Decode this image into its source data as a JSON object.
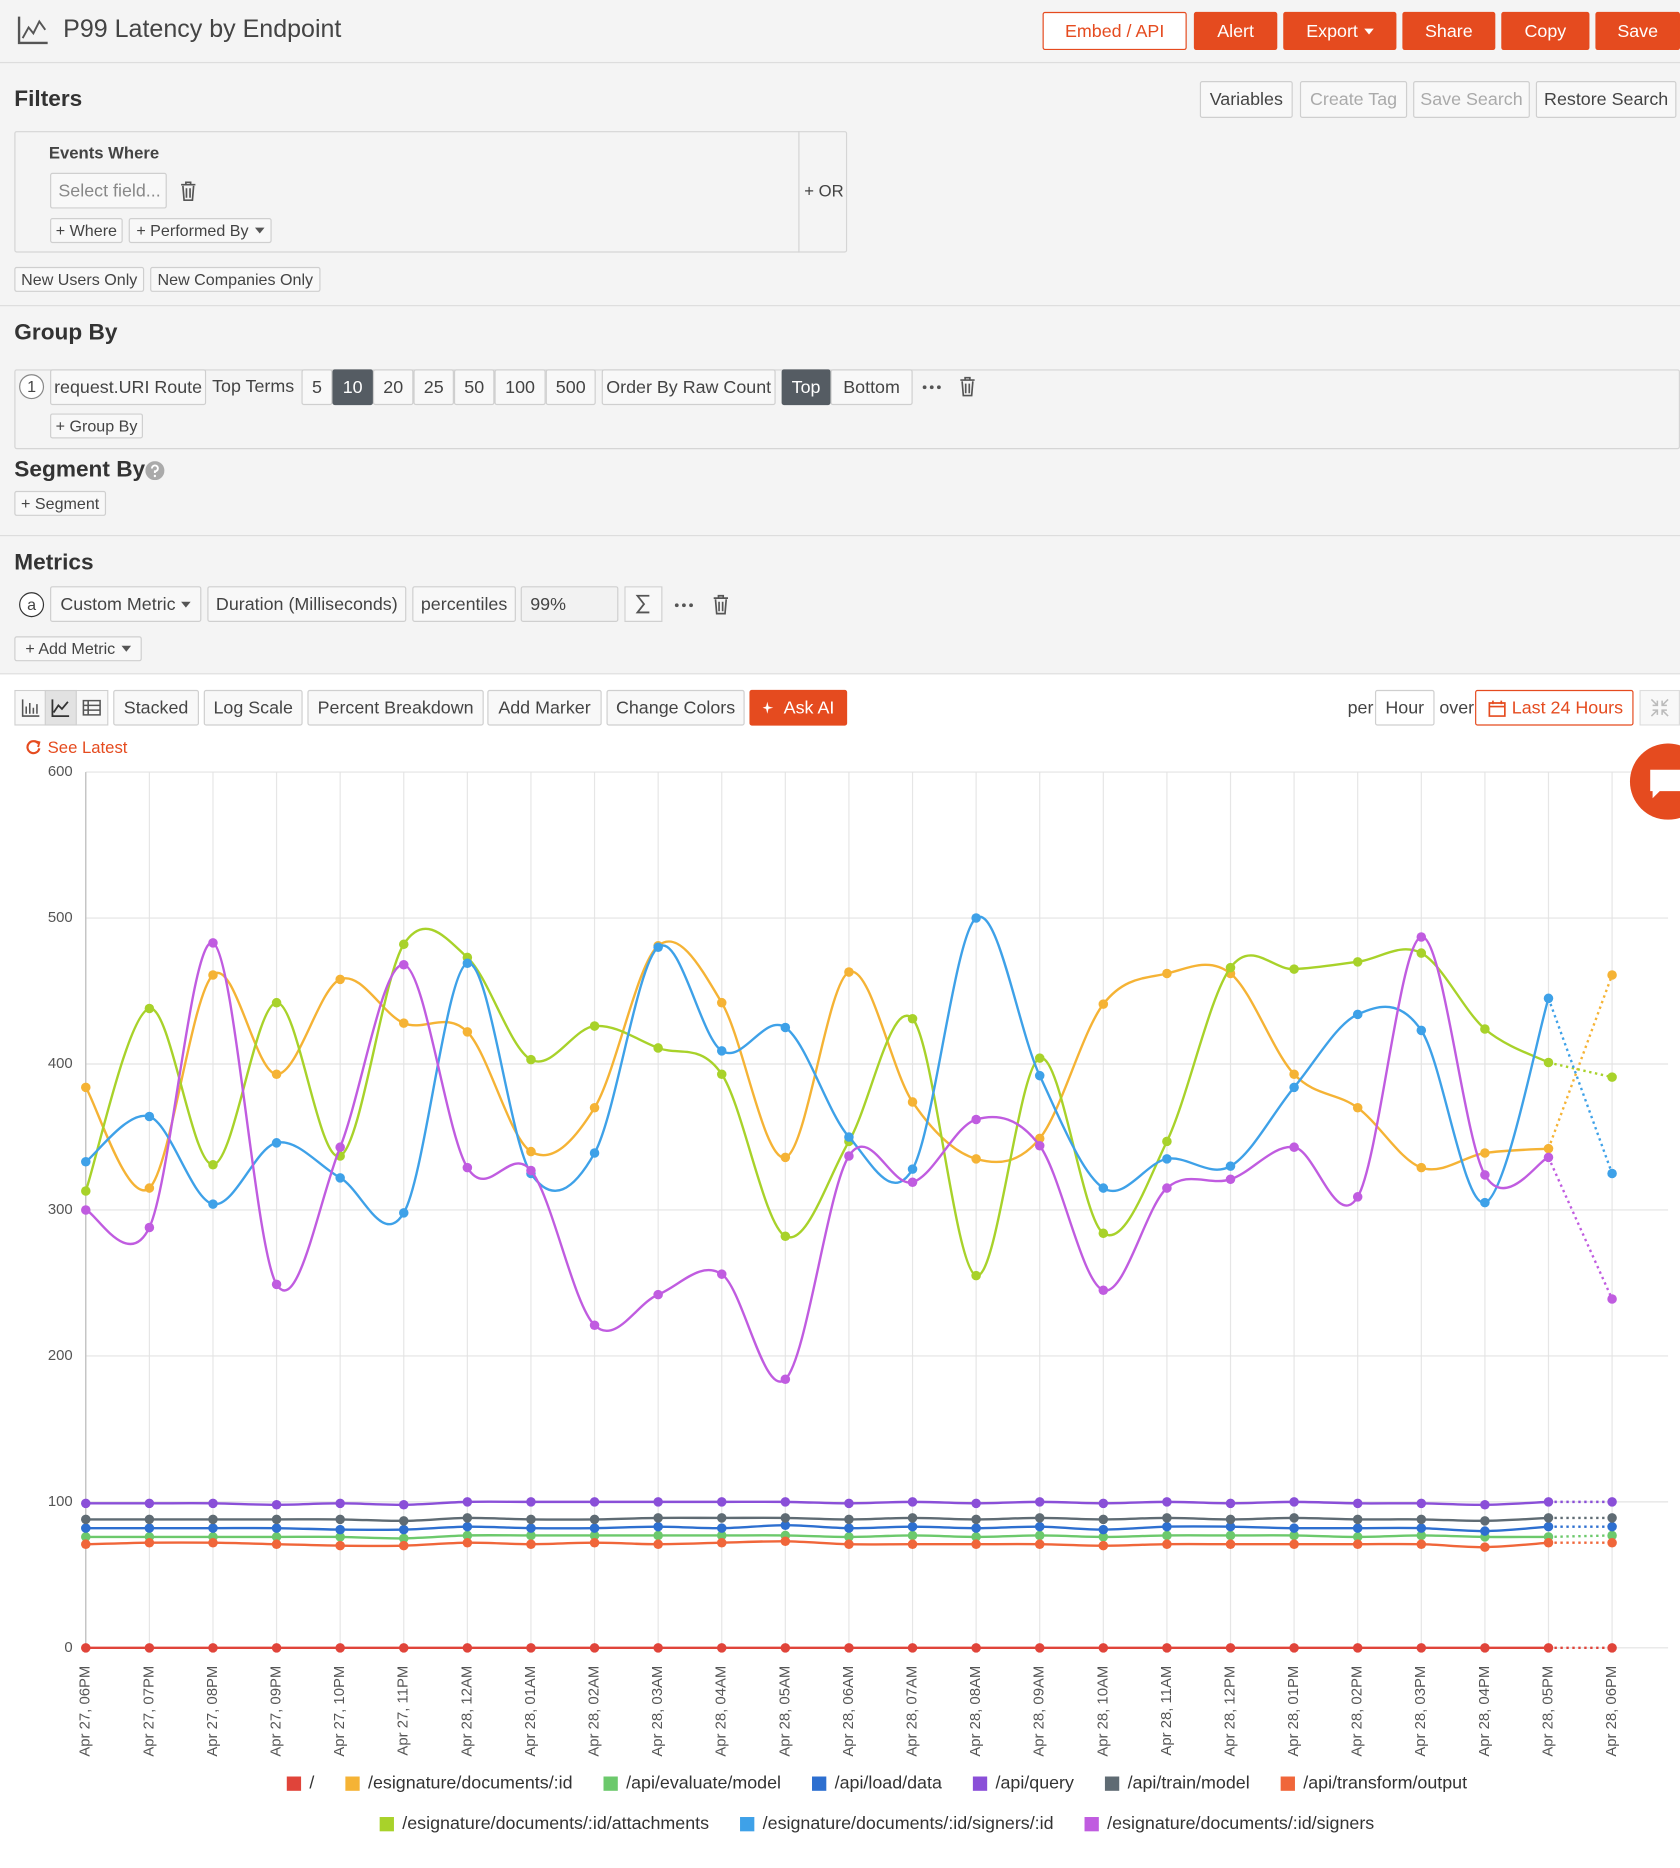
{
  "header": {
    "title": "P99 Latency by Endpoint",
    "buttons": [
      "Embed / API",
      "Alert",
      "Export",
      "Share",
      "Copy",
      "Save"
    ]
  },
  "filters": {
    "title": "Filters",
    "buttons": [
      "Variables",
      "Create Tag",
      "Save Search",
      "Restore Search"
    ],
    "events_where": "Events Where",
    "select_field": "Select field...",
    "where": "+ Where",
    "performed_by": "+ Performed By",
    "or": "+ OR",
    "new_users": "New Users Only",
    "new_companies": "New Companies Only"
  },
  "group_by": {
    "title": "Group By",
    "index": "1",
    "field": "request.URI Route",
    "top_terms": "Top Terms",
    "sizes": [
      "5",
      "10",
      "20",
      "25",
      "50",
      "100",
      "500"
    ],
    "order": "Order By Raw Count",
    "top": "Top",
    "bottom": "Bottom",
    "add": "+ Group By"
  },
  "segment_by": {
    "title": "Segment By",
    "add": "+ Segment"
  },
  "metrics": {
    "title": "Metrics",
    "index": "a",
    "metric": "Custom Metric",
    "field": "Duration (Milliseconds)",
    "aggregation": "percentiles",
    "percentile": "99%",
    "add": "+ Add Metric"
  },
  "toolbar": {
    "buttons": [
      "Stacked",
      "Log Scale",
      "Percent Breakdown",
      "Add Marker",
      "Change Colors"
    ],
    "ask_ai": "Ask AI",
    "per": "per",
    "interval": "Hour",
    "over": "over",
    "range": "Last 24 Hours",
    "see_latest": "See Latest"
  },
  "chart_data": {
    "type": "line",
    "grid": true,
    "categories": [
      "Apr 27, 06PM",
      "Apr 27, 07PM",
      "Apr 27, 08PM",
      "Apr 27, 09PM",
      "Apr 27, 10PM",
      "Apr 27, 11PM",
      "Apr 28, 12AM",
      "Apr 28, 01AM",
      "Apr 28, 02AM",
      "Apr 28, 03AM",
      "Apr 28, 04AM",
      "Apr 28, 05AM",
      "Apr 28, 06AM",
      "Apr 28, 07AM",
      "Apr 28, 08AM",
      "Apr 28, 09AM",
      "Apr 28, 10AM",
      "Apr 28, 11AM",
      "Apr 28, 12PM",
      "Apr 28, 01PM",
      "Apr 28, 02PM",
      "Apr 28, 03PM",
      "Apr 28, 04PM",
      "Apr 28, 05PM",
      "Apr 28, 06PM"
    ],
    "ylim": [
      0,
      600
    ],
    "yticks": [
      0,
      100,
      200,
      300,
      400,
      500,
      600
    ],
    "series": [
      {
        "name": "/",
        "color": "#e0443a",
        "values": [
          0,
          0,
          0,
          0,
          0,
          0,
          0,
          0,
          0,
          0,
          0,
          0,
          0,
          0,
          0,
          0,
          0,
          0,
          0,
          0,
          0,
          0,
          0,
          0,
          0
        ]
      },
      {
        "name": "/esignature/documents/:id",
        "color": "#f5b335",
        "values": [
          384,
          315,
          461,
          393,
          458,
          428,
          422,
          340,
          370,
          481,
          442,
          336,
          463,
          374,
          335,
          349,
          441,
          462,
          462,
          393,
          370,
          329,
          339,
          342,
          461
        ]
      },
      {
        "name": "/api/evaluate/model",
        "color": "#6cc96c",
        "values": [
          76,
          76,
          76,
          76,
          76,
          75,
          77,
          77,
          77,
          77,
          77,
          77,
          76,
          77,
          76,
          77,
          76,
          77,
          77,
          77,
          76,
          77,
          76,
          76,
          77
        ]
      },
      {
        "name": "/api/load/data",
        "color": "#2d6fd0",
        "values": [
          82,
          82,
          82,
          82,
          81,
          81,
          83,
          82,
          82,
          83,
          82,
          84,
          82,
          83,
          82,
          83,
          81,
          83,
          83,
          82,
          82,
          82,
          80,
          83,
          83
        ]
      },
      {
        "name": "/api/query",
        "color": "#8a4fd8",
        "values": [
          99,
          99,
          99,
          98,
          99,
          98,
          100,
          100,
          100,
          100,
          100,
          100,
          99,
          100,
          99,
          100,
          99,
          100,
          99,
          100,
          99,
          99,
          98,
          100,
          100
        ]
      },
      {
        "name": "/api/train/model",
        "color": "#5f6b73",
        "values": [
          88,
          88,
          88,
          88,
          88,
          87,
          89,
          88,
          88,
          89,
          89,
          89,
          88,
          89,
          88,
          89,
          88,
          89,
          88,
          89,
          88,
          88,
          87,
          89,
          89
        ]
      },
      {
        "name": "/api/transform/output",
        "color": "#f0663a",
        "values": [
          71,
          72,
          72,
          71,
          70,
          70,
          72,
          71,
          72,
          71,
          72,
          73,
          71,
          71,
          71,
          71,
          70,
          71,
          71,
          71,
          71,
          71,
          69,
          72,
          72
        ]
      },
      {
        "name": "/esignature/documents/:id/attachments",
        "color": "#a8d22a",
        "values": [
          313,
          438,
          331,
          442,
          337,
          482,
          473,
          403,
          426,
          411,
          393,
          282,
          347,
          431,
          255,
          404,
          284,
          347,
          466,
          465,
          470,
          476,
          424,
          401,
          391
        ]
      },
      {
        "name": "/esignature/documents/:id/signers/:id",
        "color": "#3ea1e8",
        "values": [
          333,
          364,
          304,
          346,
          322,
          298,
          469,
          325,
          339,
          480,
          409,
          425,
          350,
          328,
          500,
          392,
          315,
          335,
          330,
          384,
          434,
          423,
          305,
          445,
          325
        ]
      },
      {
        "name": "/esignature/documents/:id/signers",
        "color": "#c05ce0",
        "values": [
          300,
          288,
          483,
          249,
          343,
          468,
          329,
          327,
          221,
          242,
          256,
          184,
          337,
          319,
          362,
          344,
          245,
          315,
          321,
          343,
          309,
          487,
          324,
          336,
          239
        ]
      }
    ]
  }
}
